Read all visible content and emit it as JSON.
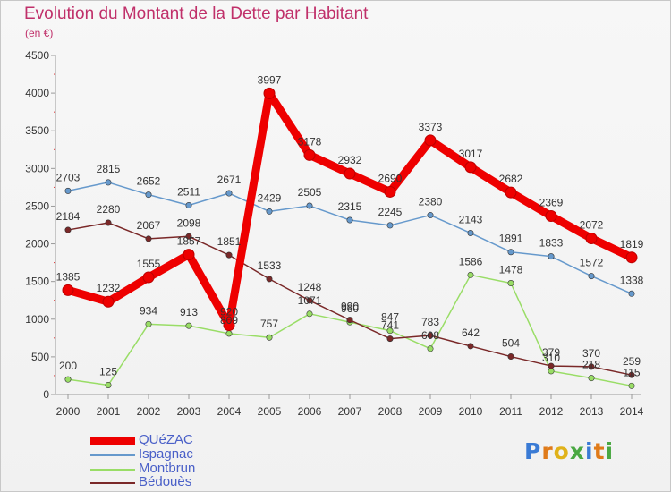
{
  "title": "Evolution du Montant de la Dette par Habitant",
  "unit": "(en €)",
  "logo": "Proxiti",
  "chart_data": {
    "type": "line",
    "title": "Evolution du Montant de la Dette par Habitant",
    "ylabel": "(en €)",
    "xlabel": "",
    "x": [
      "2000",
      "2001",
      "2002",
      "2003",
      "2004",
      "2005",
      "2006",
      "2007",
      "2008",
      "2009",
      "2010",
      "2011",
      "2012",
      "2013",
      "2014"
    ],
    "ylim": [
      0,
      4500
    ],
    "yticks": [
      0,
      500,
      1000,
      1500,
      2000,
      2500,
      3000,
      3500,
      4000,
      4500
    ],
    "grid": false,
    "legend": "bottom-left",
    "series": [
      {
        "name": "QUéZAC",
        "color": "#ee0000",
        "values": [
          1385,
          1232,
          1555,
          1857,
          920,
          3997,
          3178,
          2932,
          2690,
          3373,
          3017,
          2682,
          2369,
          2072,
          1819
        ],
        "labels": [
          "1385",
          "1232",
          "1555",
          "1857",
          "920",
          "3997",
          "3178",
          "2932",
          "2690",
          "3373",
          "3017",
          "2682",
          "2369",
          "2072",
          "1819"
        ]
      },
      {
        "name": "Ispagnac",
        "color": "#6699cc",
        "values": [
          2703,
          2815,
          2652,
          2511,
          2671,
          2429,
          2505,
          2315,
          2245,
          2380,
          2143,
          1891,
          1833,
          1572,
          1338
        ],
        "labels": [
          "2703",
          "2815",
          "2652",
          "2511",
          "2671",
          "2429",
          "2505",
          "2315",
          "2245",
          "2380",
          "2143",
          "1891",
          "1833",
          "1572",
          "1338"
        ]
      },
      {
        "name": "Montbrun",
        "color": "#99dd66",
        "values": [
          200,
          125,
          934,
          913,
          809,
          757,
          1071,
          960,
          847,
          608,
          1586,
          1478,
          310,
          218,
          115
        ],
        "labels": [
          "200",
          "125",
          "934",
          "913",
          "809",
          "757",
          "1071",
          "960",
          "847",
          "608",
          "1586",
          "1478",
          "310",
          "218",
          "115"
        ]
      },
      {
        "name": "Bédouès",
        "color": "#7a2828",
        "values": [
          2184,
          2280,
          2067,
          2098,
          1851,
          1533,
          1248,
          990,
          741,
          783,
          642,
          504,
          379,
          370,
          259
        ],
        "labels": [
          "2184",
          "2280",
          "2067",
          "2098",
          "1851",
          "1533",
          "1248",
          "990",
          "741",
          "783",
          "642",
          "504",
          "379",
          "370",
          "259"
        ]
      }
    ]
  }
}
